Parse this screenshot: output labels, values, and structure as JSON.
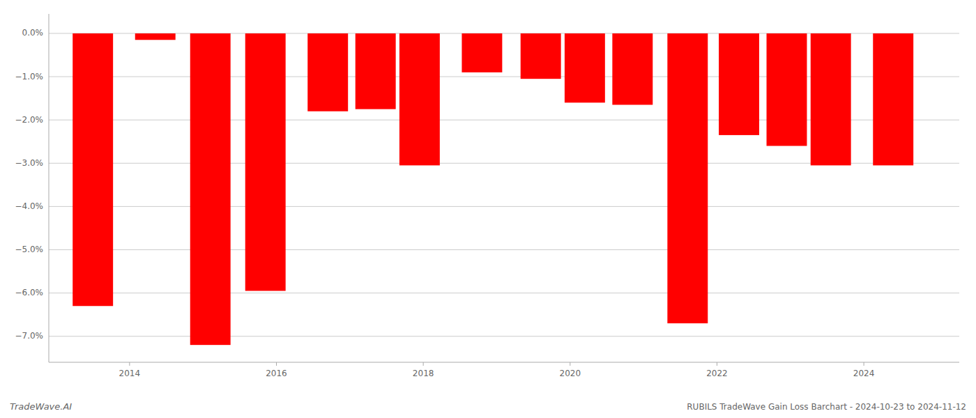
{
  "chart_data": {
    "type": "bar",
    "title": "RUBILS TradeWave Gain Loss Barchart - 2024-10-23 to 2024-11-12",
    "annotations": [
      "TradeWave.AI"
    ],
    "x": [
      2013.5,
      2014.35,
      2015.1,
      2015.85,
      2016.7,
      2017.35,
      2017.95,
      2018.8,
      2019.6,
      2020.2,
      2020.85,
      2021.6,
      2022.3,
      2022.95,
      2023.55,
      2024.4
    ],
    "values": [
      -6.3,
      -0.15,
      -7.2,
      -5.95,
      -1.8,
      -1.75,
      -3.05,
      -0.9,
      -1.05,
      -1.6,
      -1.65,
      -6.7,
      -2.35,
      -2.6,
      -3.05,
      -3.05
    ],
    "color": "#ff0000",
    "xlim": [
      2012.9,
      2025.3
    ],
    "ylim": [
      -7.6,
      0.45
    ],
    "xticks": [
      2014,
      2016,
      2018,
      2020,
      2022,
      2024
    ],
    "yticks": [
      {
        "value": 0.0,
        "label": "0.0%"
      },
      {
        "value": -1.0,
        "label": "−1.0%"
      },
      {
        "value": -2.0,
        "label": "−2.0%"
      },
      {
        "value": -3.0,
        "label": "−3.0%"
      },
      {
        "value": -4.0,
        "label": "−4.0%"
      },
      {
        "value": -5.0,
        "label": "−5.0%"
      },
      {
        "value": -6.0,
        "label": "−6.0%"
      },
      {
        "value": -7.0,
        "label": "−7.0%"
      }
    ],
    "grid": true
  }
}
